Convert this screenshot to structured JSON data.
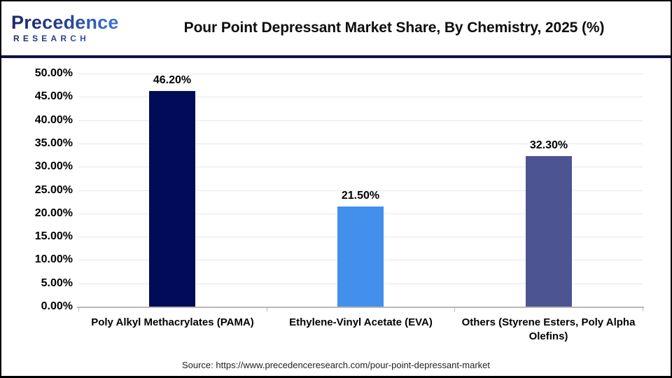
{
  "header": {
    "logo": {
      "name": "Precedence",
      "subtitle": "RESEARCH"
    },
    "title": "Pour Point Depressant Market Share, By Chemistry, 2025 (%)"
  },
  "chart_data": {
    "type": "bar",
    "title": "Pour Point Depressant Market Share, By Chemistry, 2025 (%)",
    "categories": [
      "Poly Alkyl Methacrylates (PAMA)",
      "Ethylene-Vinyl Acetate (EVA)",
      "Others (Styrene Esters, Poly Alpha Olefins)"
    ],
    "values": [
      46.2,
      21.5,
      32.3
    ],
    "value_labels": [
      "46.20%",
      "21.50%",
      "32.30%"
    ],
    "bar_colors": [
      "#010b57",
      "#4290ec",
      "#4c5492"
    ],
    "xlabel": "",
    "ylabel": "",
    "ylim": [
      0,
      50
    ],
    "ytick_step": 5,
    "ytick_labels": [
      "0.00%",
      "5.00%",
      "10.00%",
      "15.00%",
      "20.00%",
      "25.00%",
      "30.00%",
      "35.00%",
      "40.00%",
      "45.00%",
      "50.00%"
    ],
    "grid": true,
    "legend": "none"
  },
  "footer": {
    "source": "Source: https://www.precedenceresearch.com/pour-point-depressant-market"
  }
}
